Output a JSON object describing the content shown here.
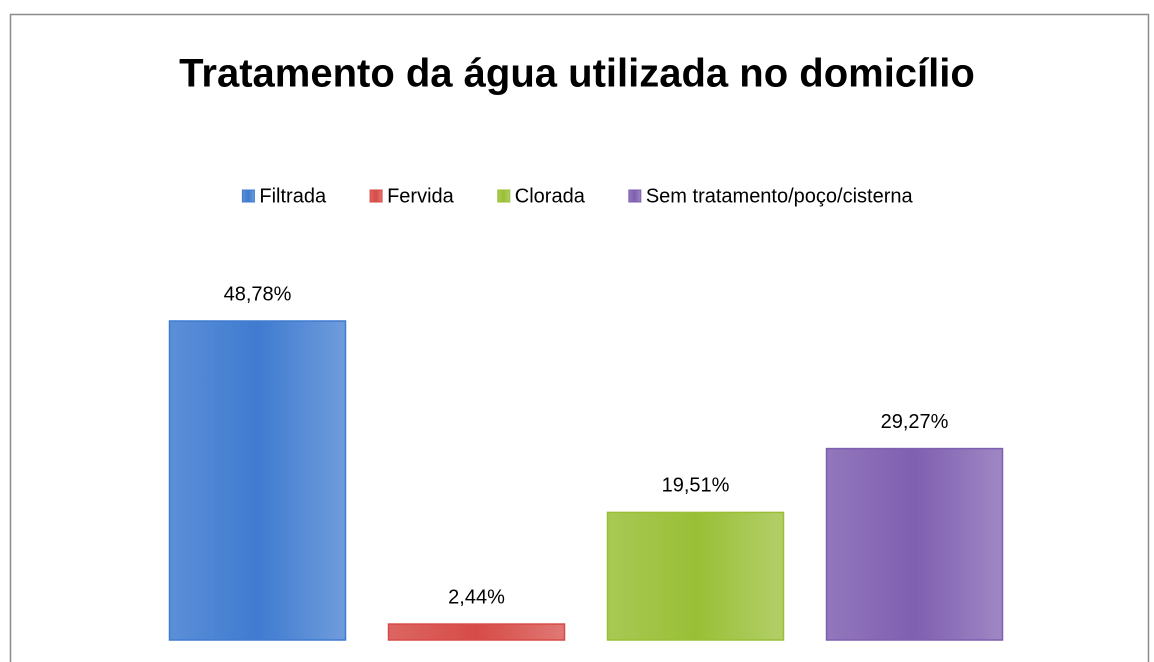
{
  "chart_data": {
    "type": "bar",
    "title": "Tratamento da água utilizada no domicílio",
    "series": [
      {
        "name": "Filtrada",
        "color": "#3f7bd0",
        "values": [
          48.78
        ],
        "value_labels": [
          "48,78%"
        ]
      },
      {
        "name": "Fervida",
        "color": "#d64b47",
        "values": [
          2.44
        ],
        "value_labels": [
          "2,44%"
        ]
      },
      {
        "name": "Clorada",
        "color": "#99bf36",
        "values": [
          19.51
        ],
        "value_labels": [
          "19,51%"
        ]
      },
      {
        "name": "Sem tratamento/poço/cisterna",
        "color": "#7f5fb0",
        "values": [
          29.27
        ],
        "value_labels": [
          "29,27%"
        ]
      }
    ],
    "legend": "top"
  }
}
